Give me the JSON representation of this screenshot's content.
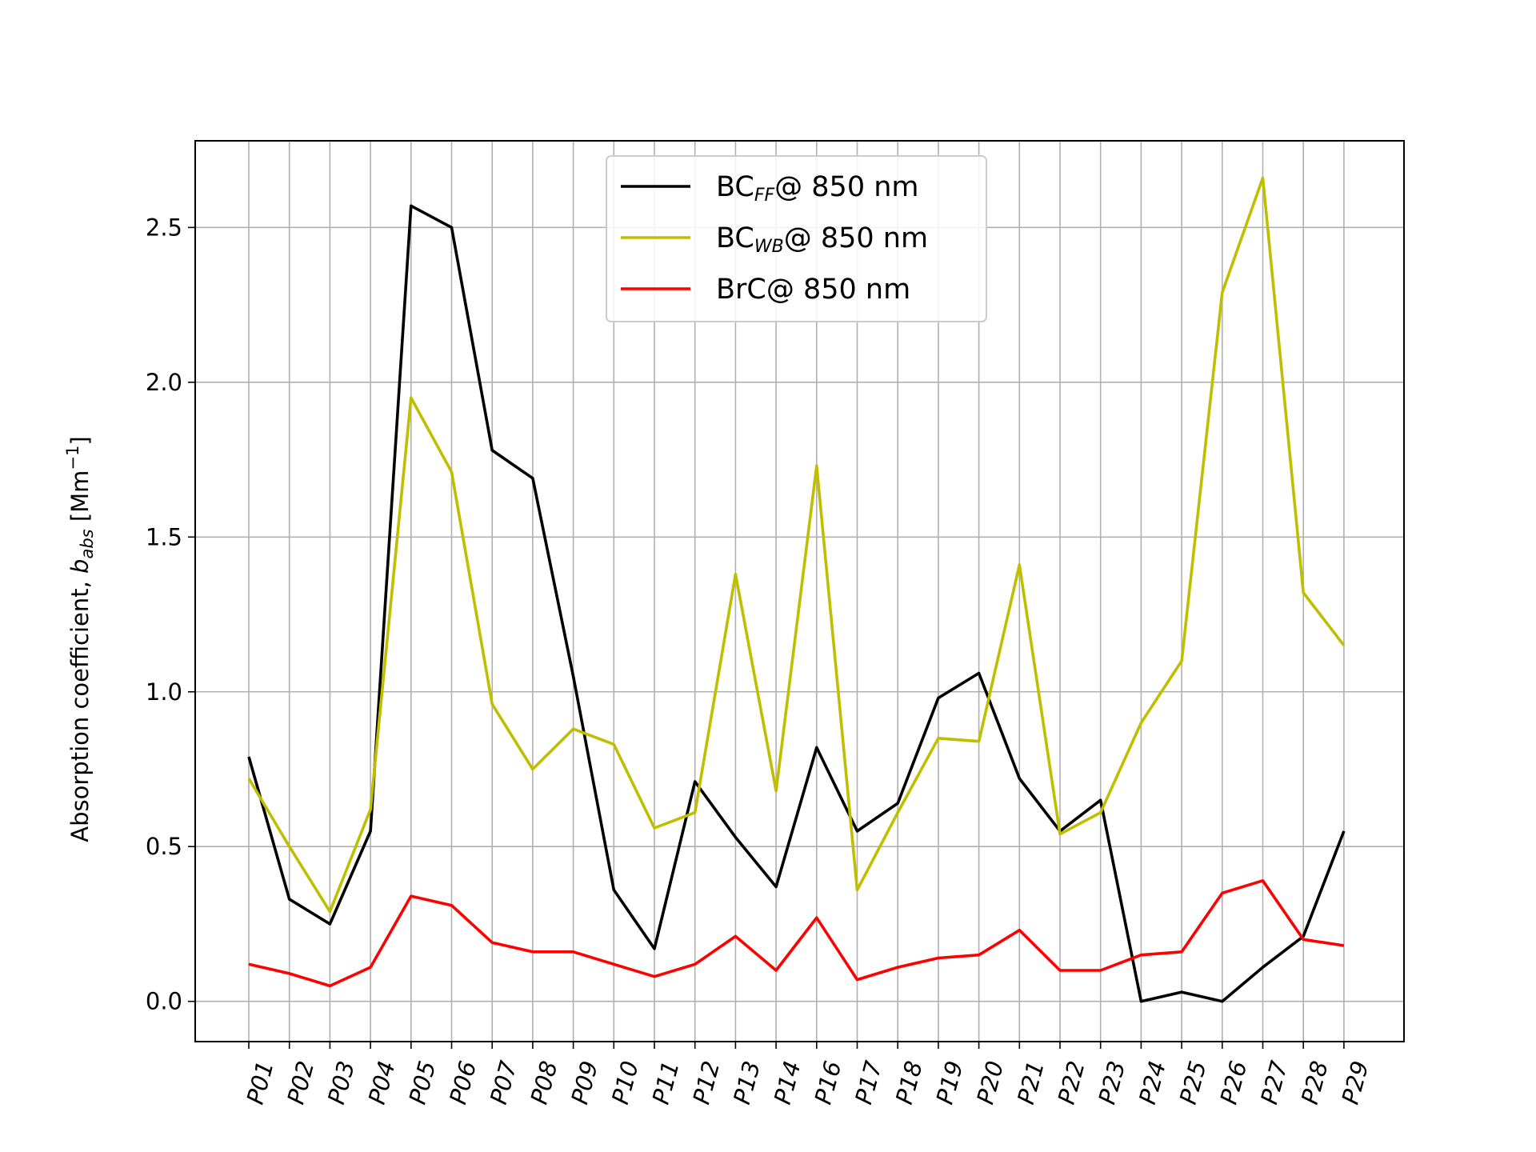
{
  "chart_data": {
    "type": "line",
    "categories": [
      "P01",
      "P02",
      "P03",
      "P04",
      "P05",
      "P06",
      "P07",
      "P08",
      "P09",
      "P10",
      "P11",
      "P12",
      "P13",
      "P14",
      "P16",
      "P17",
      "P18",
      "P19",
      "P20",
      "P21",
      "P22",
      "P23",
      "P24",
      "P25",
      "P26",
      "P27",
      "P28",
      "P29"
    ],
    "ylabel": {
      "main": "Absorption coefficient, ",
      "var": "b",
      "sub": "abs",
      "unit": "  [Mm",
      "exp": "−1",
      "close": "]"
    },
    "xlabel": "",
    "ylim": [
      -0.13,
      2.78
    ],
    "yticks": [
      "0.0",
      "0.5",
      "1.0",
      "1.5",
      "2.0",
      "2.5"
    ],
    "ytick_values": [
      0.0,
      0.5,
      1.0,
      1.5,
      2.0,
      2.5
    ],
    "grid": true,
    "legend_position": "top-center",
    "series": [
      {
        "label_main": "BC",
        "label_sub": "FF",
        "label_rest": "@ 850 nm",
        "color": "#000000",
        "values": [
          0.79,
          0.33,
          0.25,
          0.55,
          2.57,
          2.5,
          1.78,
          1.69,
          1.05,
          0.36,
          0.17,
          0.71,
          0.53,
          0.37,
          0.82,
          0.55,
          0.64,
          0.98,
          1.06,
          0.72,
          0.55,
          0.65,
          0.0,
          0.03,
          0.0,
          0.11,
          0.21,
          0.55
        ]
      },
      {
        "label_main": "BC",
        "label_sub": "WB",
        "label_rest": "@ 850 nm",
        "color": "#bfbf00",
        "values": [
          0.72,
          0.5,
          0.29,
          0.62,
          1.95,
          1.71,
          0.96,
          0.75,
          0.88,
          0.83,
          0.56,
          0.61,
          1.38,
          0.68,
          1.73,
          0.36,
          0.61,
          0.85,
          0.84,
          1.41,
          0.54,
          0.61,
          0.9,
          1.1,
          2.29,
          2.66,
          1.32,
          1.15
        ]
      },
      {
        "label_main": "BrC",
        "label_sub": "",
        "label_rest": "@ 850 nm",
        "color": "#ff0000",
        "values": [
          0.12,
          0.09,
          0.05,
          0.11,
          0.34,
          0.31,
          0.19,
          0.16,
          0.16,
          0.12,
          0.08,
          0.12,
          0.21,
          0.1,
          0.27,
          0.07,
          0.11,
          0.14,
          0.15,
          0.23,
          0.1,
          0.1,
          0.15,
          0.16,
          0.35,
          0.39,
          0.2,
          0.18
        ]
      }
    ]
  }
}
